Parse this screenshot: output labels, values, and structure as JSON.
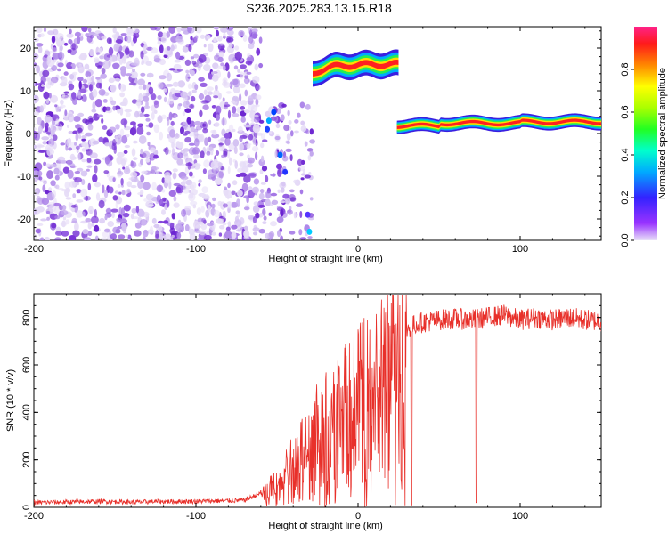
{
  "title": "S236.2025.283.13.15.R18",
  "chart_data": [
    {
      "type": "heatmap",
      "name": "spectrogram",
      "xlabel": "Height of straight line (km)",
      "ylabel": "Frequency (Hz)",
      "xlim": [
        -200,
        150
      ],
      "ylim": [
        -25,
        25
      ],
      "xticks": [
        -200,
        -100,
        0,
        100
      ],
      "yticks": [
        -20,
        -10,
        0,
        10,
        20
      ],
      "features": [
        {
          "label": "noise",
          "x_range": [
            -200,
            -60
          ],
          "y_range": [
            -25,
            25
          ],
          "amplitude": 0.1
        },
        {
          "label": "scatter",
          "x_range": [
            -60,
            -28
          ],
          "y_range": [
            -25,
            7
          ],
          "amplitude": 0.25
        },
        {
          "label": "upper band",
          "x_range": [
            -28,
            25
          ],
          "center_freq": [
            13,
            17
          ],
          "amplitude": 0.9
        },
        {
          "label": "lower band",
          "x_range": [
            25,
            150
          ],
          "center_freq": [
            1.5,
            3
          ],
          "amplitude": 0.9
        }
      ],
      "colorbar": {
        "label": "Normalized spectral amplitude",
        "range": [
          0,
          1
        ],
        "ticks": [
          "0.0",
          "0.2",
          "0.4",
          "0.6",
          "0.8"
        ]
      }
    },
    {
      "type": "line",
      "name": "snr",
      "xlabel": "Height of straight line (km)",
      "ylabel": "SNR (10 * v/v)",
      "xlim": [
        -200,
        150
      ],
      "ylim": [
        0,
        900
      ],
      "xticks": [
        -200,
        -100,
        0,
        100
      ],
      "yticks": [
        0,
        200,
        400,
        600,
        800
      ],
      "series": [
        {
          "name": "SNR",
          "color": "#e8302a",
          "x": [
            -200,
            -180,
            -160,
            -140,
            -120,
            -100,
            -80,
            -70,
            -60,
            -55,
            -50,
            -45,
            -40,
            -35,
            -30,
            -25,
            -20,
            -15,
            -10,
            -5,
            0,
            5,
            10,
            15,
            20,
            25,
            30,
            35,
            40,
            50,
            60,
            70,
            80,
            90,
            100,
            110,
            120,
            130,
            140,
            150
          ],
          "y": [
            20,
            22,
            25,
            22,
            24,
            25,
            28,
            30,
            60,
            90,
            130,
            170,
            210,
            270,
            320,
            370,
            400,
            430,
            470,
            500,
            530,
            560,
            600,
            640,
            690,
            720,
            750,
            770,
            780,
            790,
            795,
            790,
            800,
            810,
            790,
            800,
            790,
            800,
            790,
            785
          ]
        }
      ],
      "dropouts": [
        {
          "x": 33,
          "y": 10
        },
        {
          "x": 73,
          "y": 20
        }
      ]
    }
  ]
}
